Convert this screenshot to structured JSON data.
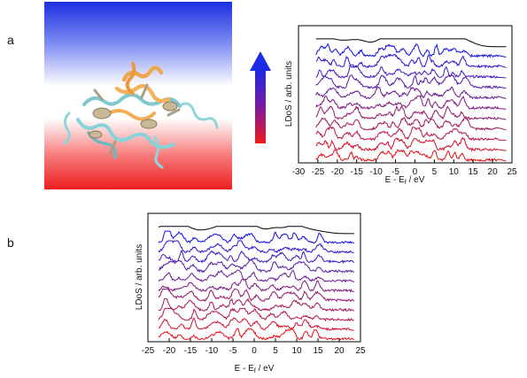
{
  "panels": [
    {
      "letter": "a"
    },
    {
      "letter": "b"
    }
  ],
  "colors": {
    "top": "#000000",
    "gradient": [
      "#1010e0",
      "#2a14d0",
      "#4018bc",
      "#561aa8",
      "#6a1a94",
      "#7e1880",
      "#92166c",
      "#a61458",
      "#ba1244",
      "#d0102e",
      "#e80c14"
    ]
  },
  "chart_data": [
    {
      "type": "line",
      "panel": "a",
      "xlabel_main": "E - E",
      "xlabel_sub": "f",
      "xlabel_tail": " / eV",
      "ylabel": "LDoS / arb. units",
      "xlim": [
        -30,
        25
      ],
      "xticks": [
        -30,
        -25,
        -20,
        -15,
        -10,
        -5,
        0,
        5,
        10,
        15,
        20,
        25
      ],
      "n_curves": 12,
      "seed": 11,
      "peaks": [
        -24.5,
        -22.5,
        -21,
        -17,
        -14.5,
        -9,
        -7,
        -5,
        -3.5,
        -0.5,
        1,
        3,
        5,
        8,
        10,
        12.5
      ],
      "curve_range": [
        -25.5,
        21.5
      ]
    },
    {
      "type": "line",
      "panel": "b",
      "xlabel_main": "E - E",
      "xlabel_sub": "f",
      "xlabel_tail": " / eV",
      "ylabel": "LDoS / arb. units",
      "xlim": [
        -25,
        25
      ],
      "xticks": [
        -25,
        -20,
        -15,
        -10,
        -5,
        0,
        5,
        10,
        15,
        20,
        25
      ],
      "n_curves": 12,
      "seed": 29,
      "peaks": [
        -21,
        -20,
        -17.5,
        -14.5,
        -10,
        -8,
        -5,
        -3.5,
        -2,
        0,
        4.5,
        7,
        9.5,
        12,
        15
      ],
      "curve_range": [
        -22.5,
        23
      ]
    }
  ]
}
